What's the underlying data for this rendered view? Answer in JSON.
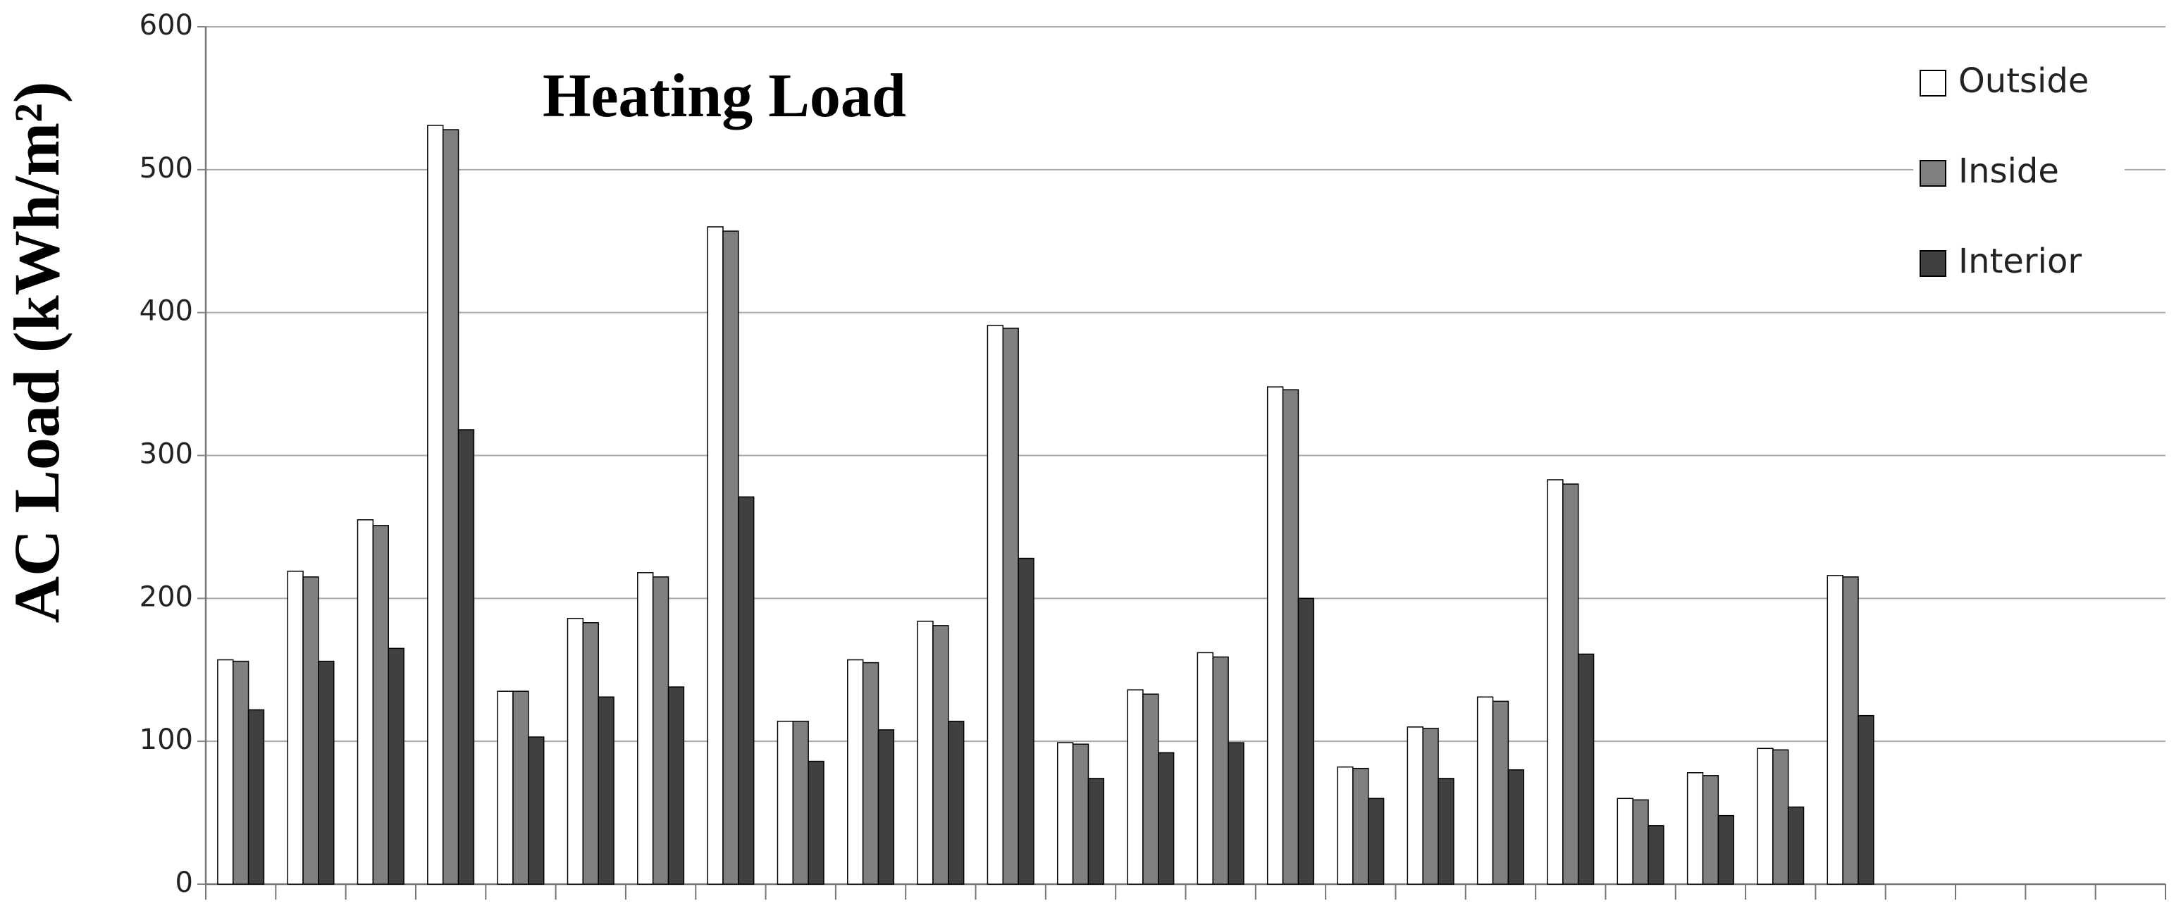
{
  "chart_data": {
    "type": "bar",
    "annotation": "Heating Load",
    "y_label": "AC Load (kWh/m²)",
    "categories": [
      null,
      null,
      null,
      null,
      null,
      null,
      null,
      null,
      null,
      null,
      null,
      null,
      null,
      null,
      null,
      null,
      null,
      null,
      null,
      null,
      null,
      null,
      null,
      null,
      null,
      null,
      null,
      null
    ],
    "series": [
      {
        "name": "Outside",
        "color": "#ffffff",
        "values": [
          157,
          219,
          255,
          531,
          135,
          186,
          218,
          460,
          114,
          157,
          184,
          391,
          99,
          136,
          162,
          348,
          82,
          110,
          131,
          283,
          60,
          78,
          95,
          216,
          null,
          null,
          null,
          null
        ]
      },
      {
        "name": "Inside",
        "color": "#808080",
        "values": [
          156,
          215,
          251,
          528,
          135,
          183,
          215,
          457,
          114,
          155,
          181,
          389,
          98,
          133,
          159,
          346,
          81,
          109,
          128,
          280,
          59,
          76,
          94,
          215,
          null,
          null,
          null,
          null
        ]
      },
      {
        "name": "Interior",
        "color": "#404040",
        "values": [
          122,
          156,
          165,
          318,
          103,
          131,
          138,
          271,
          86,
          108,
          114,
          228,
          74,
          92,
          99,
          200,
          60,
          74,
          80,
          161,
          41,
          48,
          54,
          118,
          null,
          null,
          null,
          null
        ]
      }
    ],
    "ylim": [
      0,
      600
    ],
    "yticks": [
      0,
      100,
      200,
      300,
      400,
      500,
      600
    ],
    "grid": true,
    "legend": "top-right"
  }
}
